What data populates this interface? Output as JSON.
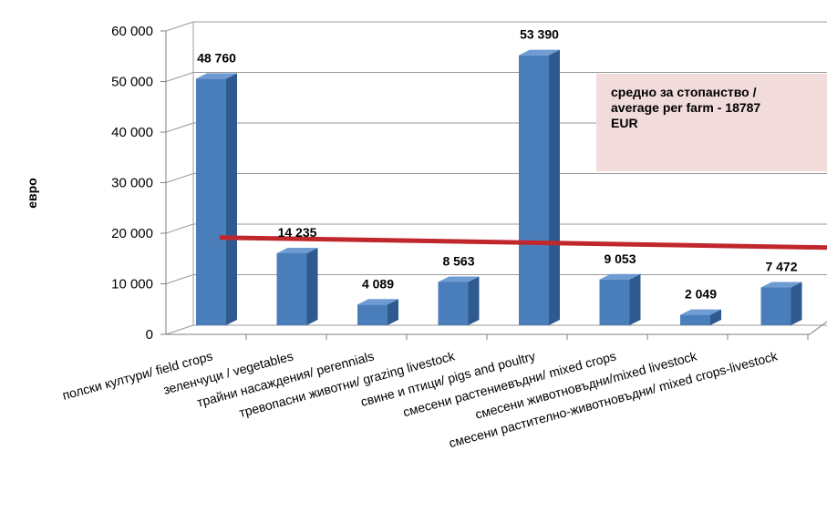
{
  "chart_data": {
    "type": "bar",
    "ylabel": "евро",
    "ylim": [
      0,
      60000
    ],
    "yticks": [
      "0",
      "10 000",
      "20 000",
      "30 000",
      "40 000",
      "50 000",
      "60 000"
    ],
    "categories": [
      "полски култури/ field crops",
      "зеленчуци / vegetables",
      "трайни насаждения/ perennials",
      "тревопасни животни/ grazing livestock",
      "свине и птици/ pigs and poultry",
      "смесени растениевъдни/ mixed crops",
      "смесени животновъдни/mixed livestock",
      "смесени растително-животновъдни/ mixed crops-livestock"
    ],
    "values": [
      48760,
      14235,
      4089,
      8563,
      53390,
      9053,
      2049,
      7472
    ],
    "data_labels": [
      "48 760",
      "14 235",
      "4 089",
      "8 563",
      "53 390",
      "9 053",
      "2 049",
      "7 472"
    ],
    "average": 18787,
    "average_label": "средно за стопанство  /\naverage per farm  - 18787\nEUR",
    "grid": true,
    "colors": {
      "bar": "#4a7ebb",
      "bar_side": "#2f5a8f",
      "bar_top": "#6f9bd3",
      "average_line": "#c0272d",
      "annotation_bg": "#f2dcdb"
    }
  }
}
